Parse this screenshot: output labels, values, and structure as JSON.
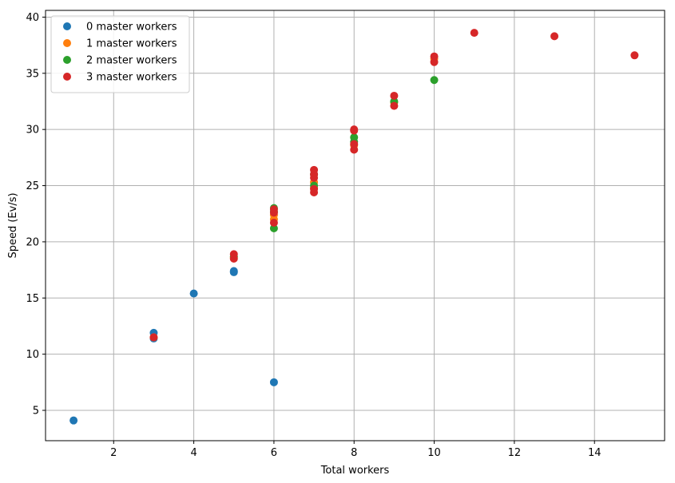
{
  "chart_data": {
    "type": "scatter",
    "title": "",
    "xlabel": "Total workers",
    "ylabel": "Speed (Ev/s)",
    "xlim": [
      0.3,
      15.75
    ],
    "ylim": [
      2.3,
      40.6
    ],
    "xticks": [
      2,
      4,
      6,
      8,
      10,
      12,
      14
    ],
    "yticks": [
      5,
      10,
      15,
      20,
      25,
      30,
      35,
      40
    ],
    "grid": true,
    "legend_position": "upper-left",
    "series": [
      {
        "name": "0 master workers",
        "color": "#1f77b4",
        "points": [
          [
            1,
            4.1
          ],
          [
            3,
            11.4
          ],
          [
            3,
            11.9
          ],
          [
            4,
            15.4
          ],
          [
            5,
            17.3
          ],
          [
            5,
            17.4
          ],
          [
            6,
            7.5
          ]
        ]
      },
      {
        "name": "1 master workers",
        "color": "#ff7f0e",
        "points": [
          [
            3,
            11.5
          ],
          [
            5,
            18.6
          ],
          [
            6,
            22.0
          ],
          [
            6,
            22.4
          ],
          [
            7,
            25.3
          ],
          [
            7,
            24.8
          ],
          [
            8,
            28.6
          ],
          [
            9,
            32.4
          ],
          [
            10,
            36.3
          ]
        ]
      },
      {
        "name": "2 master workers",
        "color": "#2ca02c",
        "points": [
          [
            5,
            18.7
          ],
          [
            6,
            21.2
          ],
          [
            6,
            23.0
          ],
          [
            6,
            22.7
          ],
          [
            7,
            25.0
          ],
          [
            7,
            26.0
          ],
          [
            8,
            28.9
          ],
          [
            8,
            29.3
          ],
          [
            9,
            32.5
          ],
          [
            10,
            34.4
          ]
        ]
      },
      {
        "name": "3 master workers",
        "color": "#d62728",
        "points": [
          [
            3,
            11.5
          ],
          [
            5,
            18.5
          ],
          [
            5,
            18.9
          ],
          [
            6,
            21.7
          ],
          [
            6,
            22.6
          ],
          [
            6,
            22.9
          ],
          [
            7,
            24.4
          ],
          [
            7,
            24.7
          ],
          [
            7,
            25.7
          ],
          [
            7,
            26.0
          ],
          [
            7,
            26.4
          ],
          [
            8,
            28.2
          ],
          [
            8,
            28.7
          ],
          [
            8,
            29.9
          ],
          [
            8,
            30.0
          ],
          [
            9,
            32.1
          ],
          [
            9,
            33.0
          ],
          [
            10,
            36.0
          ],
          [
            10,
            36.5
          ],
          [
            11,
            38.6
          ],
          [
            13,
            38.3
          ],
          [
            15,
            36.6
          ]
        ]
      }
    ]
  }
}
